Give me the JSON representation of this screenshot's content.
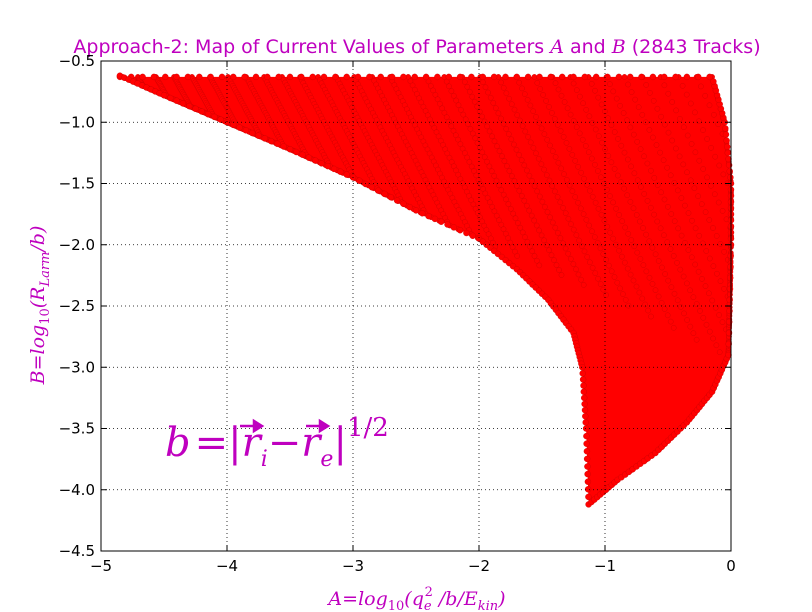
{
  "colors": {
    "accent": "#bf00bf",
    "points": "#ff0000",
    "grid": "#000000"
  },
  "title": {
    "prefix": "Approach-2: Map of Current Values of Parameters ",
    "var_a": "A",
    "middle": " and ",
    "var_b": "B",
    "suffix": " (2843 Tracks)"
  },
  "xlabel": {
    "lhs": "A",
    "rhs": "log",
    "sub": "10",
    "arg_open": "(q",
    "arg_sub": "e",
    "arg_sup": "2",
    "arg_mid": " /b/E",
    "arg_sub2": "kin",
    "arg_close": ")"
  },
  "ylabel": {
    "lhs": "B",
    "rhs": "log",
    "sub": "10",
    "arg_open": "(R",
    "arg_sub": "Larm",
    "arg_close": "/b)"
  },
  "annotation": {
    "lhs": "b",
    "bar": "|",
    "r1": "r",
    "r1_sub": "i",
    "minus": "−",
    "r2": "r",
    "r2_sub": "e",
    "bar2": "|",
    "exp": "1/2"
  },
  "chart_data": {
    "type": "scatter",
    "title": "Approach-2: Map of Current Values of Parameters A and B (2843 Tracks)",
    "xlabel": "A = log10(qe^2 /b/E_kin)",
    "ylabel": "B = log10(R_Larm/b)",
    "xlim": [
      -5,
      0
    ],
    "ylim": [
      -4.5,
      -0.5
    ],
    "grid": true,
    "xticks": [
      -5,
      -4,
      -3,
      -2,
      -1,
      0
    ],
    "yticks": [
      -0.5,
      -1.0,
      -1.5,
      -2.0,
      -2.5,
      -3.0,
      -3.5,
      -4.0,
      -4.5
    ],
    "xtick_labels": [
      "−5",
      "−4",
      "−3",
      "−2",
      "−1",
      "0"
    ],
    "ytick_labels": [
      "−0.5",
      "−1.0",
      "−1.5",
      "−2.0",
      "−2.5",
      "−3.0",
      "−3.5",
      "−4.0",
      "−4.5"
    ],
    "series": [
      {
        "color": "#ff0000",
        "marker": "circle",
        "lower_boundary": [
          {
            "x": -4.85,
            "y": -0.62
          },
          {
            "x": -4.5,
            "y": -0.78
          },
          {
            "x": -4.0,
            "y": -1.0
          },
          {
            "x": -3.5,
            "y": -1.22
          },
          {
            "x": -3.0,
            "y": -1.45
          },
          {
            "x": -2.5,
            "y": -1.72
          },
          {
            "x": -2.0,
            "y": -1.95
          },
          {
            "x": -1.7,
            "y": -2.2
          },
          {
            "x": -1.45,
            "y": -2.45
          },
          {
            "x": -1.25,
            "y": -2.72
          },
          {
            "x": -1.18,
            "y": -3.0
          },
          {
            "x": -1.15,
            "y": -3.5
          },
          {
            "x": -1.13,
            "y": -4.12
          }
        ],
        "right_boundary": [
          {
            "x": -1.13,
            "y": -4.12
          },
          {
            "x": -0.9,
            "y": -3.92
          },
          {
            "x": -0.6,
            "y": -3.7
          },
          {
            "x": -0.35,
            "y": -3.45
          },
          {
            "x": -0.15,
            "y": -3.2
          },
          {
            "x": -0.02,
            "y": -2.9
          },
          {
            "x": -0.0,
            "y": -2.0
          },
          {
            "x": -0.0,
            "y": -1.5
          },
          {
            "x": -0.05,
            "y": -1.0
          },
          {
            "x": -0.15,
            "y": -0.63
          }
        ],
        "top_y": -0.63
      }
    ]
  }
}
